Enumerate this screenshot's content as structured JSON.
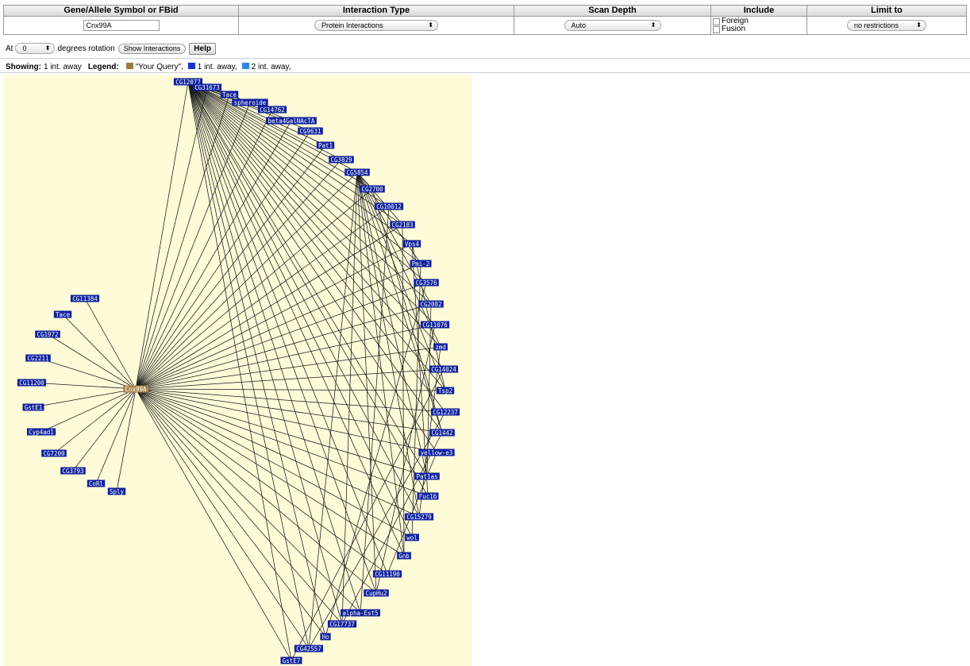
{
  "controls": {
    "headers": {
      "gene_symbol": "Gene/Allele Symbol or FBid",
      "interaction_type": "Interaction Type",
      "scan_depth": "Scan Depth",
      "include": "Include",
      "limit_to": "Limit to"
    },
    "gene_value": "Cnx99A",
    "interaction_type_value": "Protein Interactions",
    "scan_depth_value": "Auto",
    "include_options": [
      "Foreign",
      "Fusion"
    ],
    "limit_to_value": "no restrictions"
  },
  "rotation": {
    "prefix": "At",
    "degrees_value": "0",
    "suffix": "degrees rotation",
    "show_button": "Show Interactions",
    "help_button": "Help"
  },
  "legend": {
    "showing_label": "Showing:",
    "showing_value": "1 int. away",
    "legend_label": "Legend:",
    "items": [
      {
        "label": "\"Your Query\",",
        "color": "#9a7b45"
      },
      {
        "label": "1 int. away,",
        "color": "#1634c8"
      },
      {
        "label": "2 int. away,",
        "color": "#2f86e0"
      }
    ]
  },
  "graph": {
    "background": "#fefbd8",
    "query_node_color": "#a8884f",
    "node_color": "#10229e",
    "query_node": "Cnx99A",
    "left_nodes": [
      "CG11384",
      "Tace",
      "CG1972",
      "CG2211",
      "CG11200",
      "GstE1",
      "Cyp4ad1",
      "CG7200",
      "CG3793",
      "CoRl",
      "Sply"
    ],
    "arc_nodes": [
      "CG12077",
      "CG31673",
      "Tace",
      "spheroide",
      "CG14762",
      "beta4GalNAcTA",
      "CG9631",
      "Pat1",
      "CG3829",
      "CG5854",
      "CG2700",
      "CG10012",
      "CG2183",
      "Vps4",
      "Pmi-2",
      "CG3576",
      "CG2082",
      "CG11076",
      "zmd",
      "CG14024",
      "Tsp2",
      "CG12237",
      "CG1442",
      "yellow-e3",
      "Pat1as",
      "Fuc16",
      "CG15279",
      "wol",
      "Gnb",
      "CG11190",
      "CupHu2",
      "alpha-Est5",
      "CG17737",
      "Ho",
      "CG42557",
      "GstE7"
    ]
  }
}
